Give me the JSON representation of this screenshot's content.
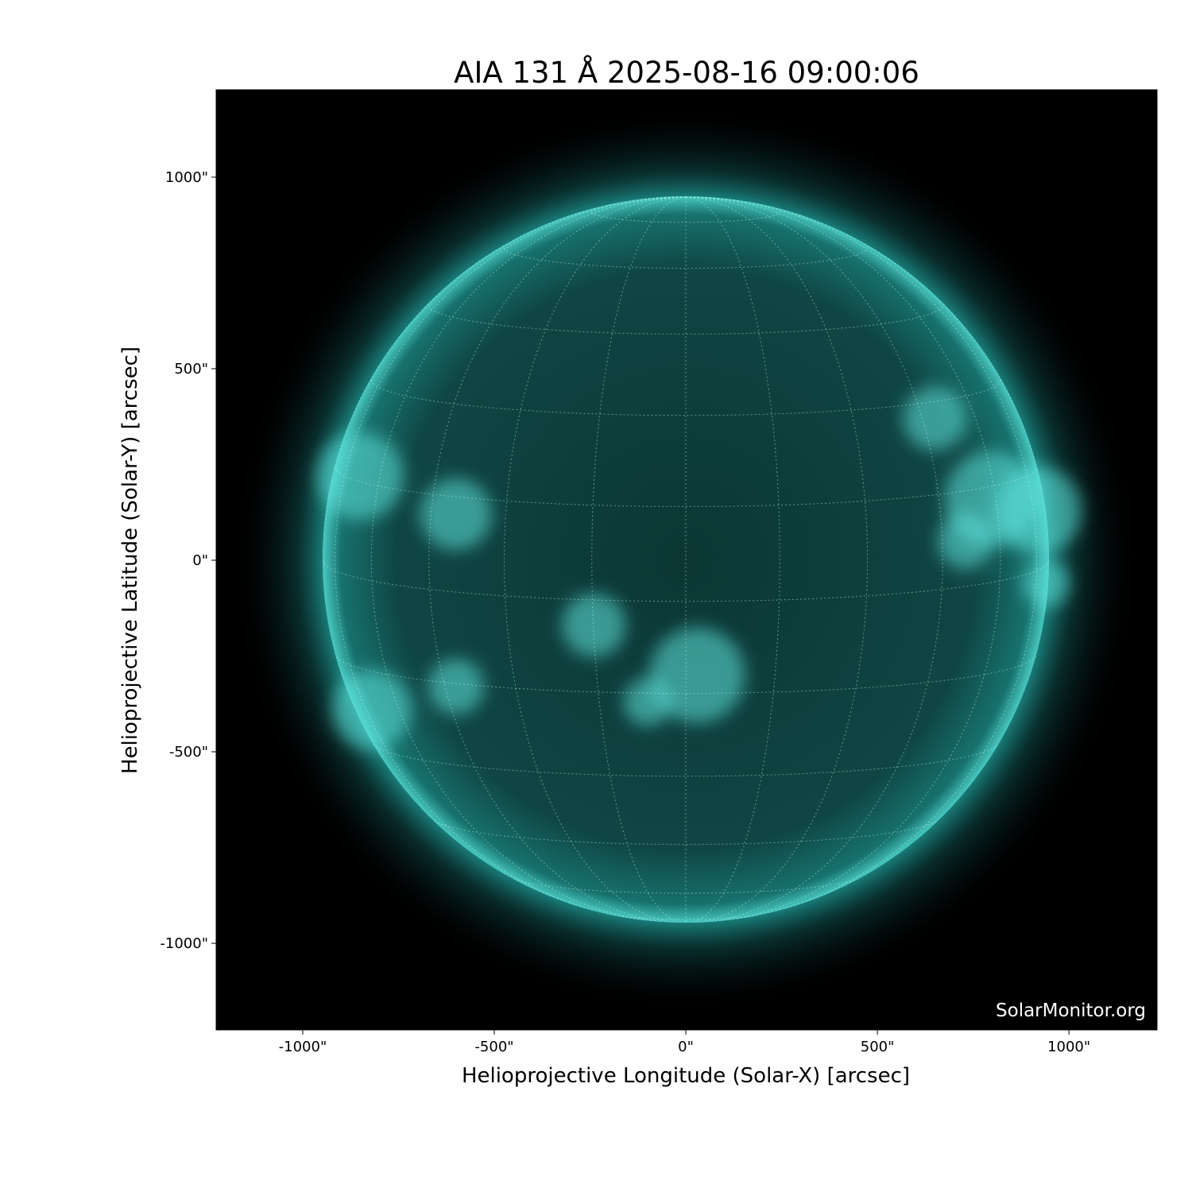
{
  "title": "AIA 131 Å 2025-08-16 09:00:06",
  "watermark": "SolarMonitor.org",
  "chart_data": {
    "type": "image",
    "title": "AIA 131 Å 2025-08-16 09:00:06",
    "xlabel": "Helioprojective Longitude (Solar-X) [arcsec]",
    "ylabel": "Helioprojective Latitude (Solar-Y) [arcsec]",
    "xlim": [
      -1226,
      1230
    ],
    "ylim": [
      -1226,
      1228
    ],
    "xticks": [
      -1000,
      -500,
      0,
      500,
      1000
    ],
    "xtick_labels": [
      "-1000\"",
      "-500\"",
      "0\"",
      "500\"",
      "1000\""
    ],
    "yticks": [
      1000,
      500,
      0,
      -500,
      -1000
    ],
    "ytick_labels": [
      "1000\"",
      "500\"",
      "0\"",
      "-500\"",
      "-1000\""
    ],
    "solar_radius_arcsec": 948,
    "grid": true,
    "grid_spacing_deg": 15,
    "colormap": [
      "#000000",
      "#0a4a48",
      "#1c8c88",
      "#5fe6de",
      "#e6ffff"
    ],
    "background": "#000000"
  }
}
